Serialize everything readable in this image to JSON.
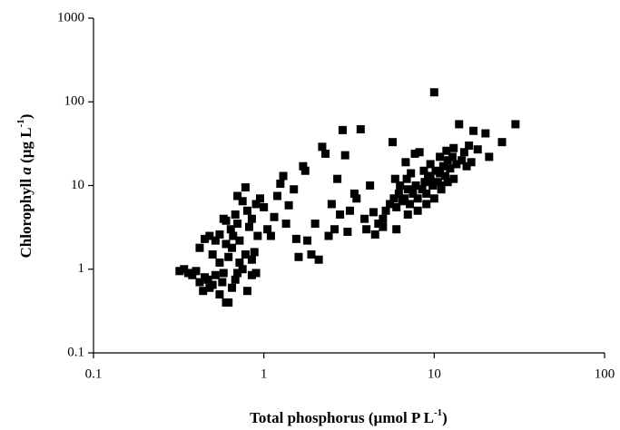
{
  "chart_data": {
    "type": "scatter",
    "xlabel": {
      "text": "Total phosphorus (µmol P L",
      "sup": "-1",
      "end": ")"
    },
    "ylabel": {
      "pre": "Chlorophyll ",
      "italic": "a",
      "mid": " (µg L",
      "sup": "-1",
      "end": ")"
    },
    "xscale": "log",
    "yscale": "log",
    "grid": false,
    "color": "#000000",
    "xlim": [
      0.1,
      100
    ],
    "ylim": [
      0.1,
      1000
    ],
    "xticks": [
      0.1,
      1,
      10,
      100
    ],
    "yticks": [
      0.1,
      1,
      10,
      100,
      1000
    ],
    "x": [
      0.32,
      0.34,
      0.36,
      0.38,
      0.4,
      0.42,
      0.44,
      0.45,
      0.47,
      0.5,
      0.52,
      0.55,
      0.57,
      0.6,
      0.62,
      0.65,
      0.68,
      0.7,
      0.75,
      0.8,
      0.85,
      0.9,
      0.58,
      0.48,
      0.42,
      0.45,
      0.48,
      0.5,
      0.52,
      0.55,
      0.58,
      0.6,
      0.62,
      0.64,
      0.66,
      0.68,
      0.7,
      0.72,
      0.75,
      0.78,
      0.8,
      0.82,
      0.85,
      0.88,
      0.9,
      0.92,
      0.95,
      1.0,
      1.05,
      1.1,
      1.15,
      1.2,
      1.25,
      1.3,
      1.35,
      1.4,
      1.5,
      0.65,
      0.72,
      0.78,
      0.85,
      0.6,
      0.55,
      0.7,
      1.6,
      1.7,
      1.75,
      1.8,
      1.9,
      2.0,
      2.1,
      2.2,
      2.3,
      2.5,
      2.6,
      2.8,
      3.0,
      3.2,
      3.4,
      3.5,
      3.7,
      3.9,
      4.0,
      2.9,
      2.4,
      1.55,
      2.7,
      3.1,
      4.2,
      4.5,
      4.7,
      5,
      5.2,
      5.5,
      5.7,
      5.8,
      6,
      6.2,
      6.5,
      6.7,
      6.9,
      7,
      7.2,
      7.5,
      7.8,
      8,
      8.2,
      8.5,
      8.8,
      9,
      9.2,
      9.5,
      9.8,
      10,
      10.2,
      10.5,
      10.8,
      11,
      11.3,
      11.6,
      12,
      12.4,
      12.8,
      13,
      13.5,
      14,
      14.5,
      15,
      16,
      17,
      18,
      20,
      21,
      25,
      30,
      6,
      5,
      7,
      8,
      4.4,
      9,
      10,
      11,
      12,
      9.5,
      8.7,
      7.3,
      6.8,
      6.3,
      5.9,
      13,
      15.5,
      11.8,
      10.8,
      7.7,
      16.5
    ],
    "values": [
      0.95,
      1.0,
      0.9,
      0.85,
      0.95,
      0.7,
      0.55,
      0.8,
      0.75,
      0.65,
      0.85,
      0.5,
      0.7,
      0.4,
      0.4,
      0.6,
      0.75,
      0.9,
      1.0,
      0.55,
      0.85,
      0.9,
      0.9,
      0.6,
      1.8,
      2.3,
      2.5,
      1.5,
      2.2,
      2.6,
      4.0,
      2.0,
      1.4,
      3.0,
      2.5,
      4.5,
      3.5,
      2.2,
      6.5,
      9.5,
      5.0,
      3.2,
      4.0,
      1.6,
      6.0,
      2.5,
      7.0,
      5.5,
      3.0,
      2.5,
      4.2,
      7.5,
      10.5,
      13,
      3.5,
      5.8,
      9,
      1.8,
      1.2,
      1.5,
      1.3,
      3.8,
      1.2,
      7.5,
      1.4,
      17,
      15,
      2.2,
      1.5,
      3.5,
      1.3,
      29,
      24,
      6,
      3,
      4.5,
      23,
      5,
      8,
      7,
      47,
      4,
      3,
      46,
      2.5,
      2.3,
      12,
      2.8,
      10,
      2.6,
      3.5,
      4,
      5,
      6,
      33,
      7,
      5.5,
      8,
      6.5,
      7,
      12,
      9,
      6,
      8,
      10,
      7,
      25,
      9,
      11,
      8,
      13,
      12,
      10,
      130,
      15,
      11,
      14,
      9,
      17,
      13,
      20,
      16,
      22,
      12,
      18,
      54,
      20,
      25,
      30,
      45,
      27,
      42,
      22,
      33,
      54,
      3,
      3.2,
      4.5,
      5,
      4.8,
      6,
      7,
      10,
      11,
      18,
      15,
      14,
      19,
      10,
      12,
      28,
      17,
      26,
      22,
      24,
      19
    ]
  }
}
